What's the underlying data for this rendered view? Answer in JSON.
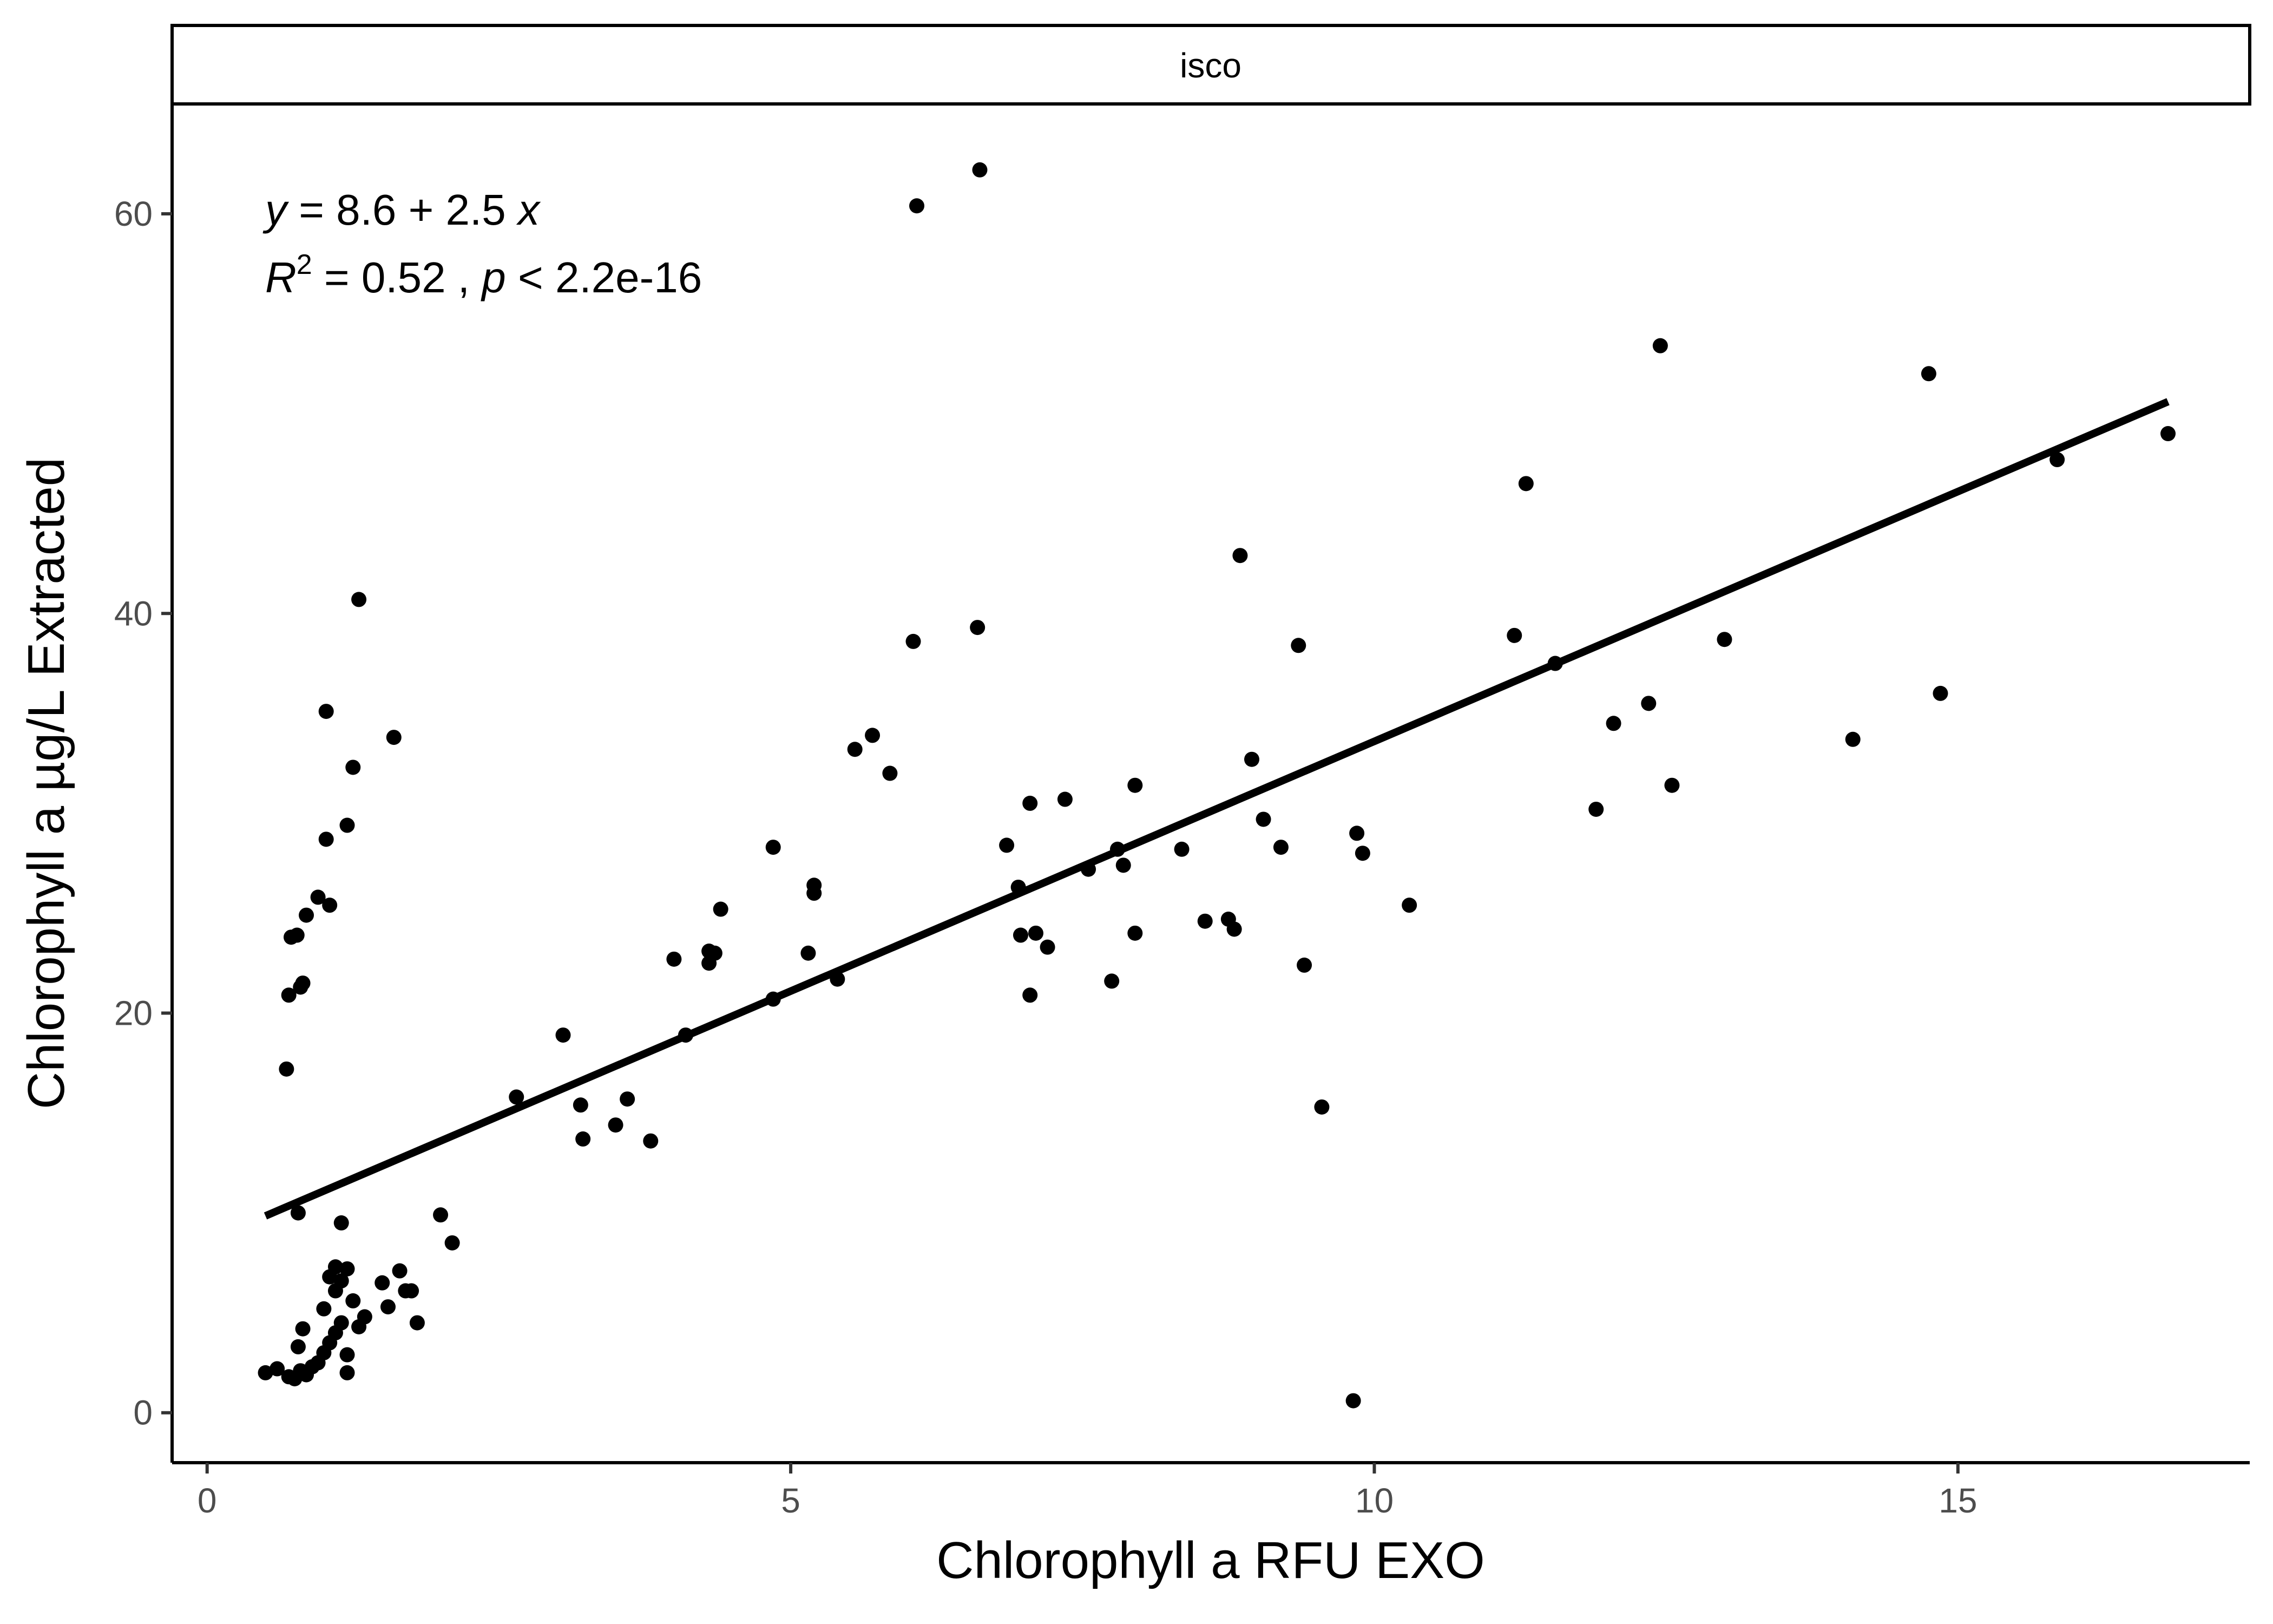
{
  "chart_data": {
    "type": "scatter",
    "facet": "isco",
    "xlabel": "Chlorophyll a RFU EXO",
    "ylabel": "Chlorophyll a µg/L Extracted",
    "xlim": [
      -0.3,
      17.5
    ],
    "ylim": [
      -2.5,
      65.5
    ],
    "x_ticks": [
      0,
      5,
      10,
      15
    ],
    "y_ticks": [
      0,
      20,
      40,
      60
    ],
    "grid": false,
    "annotation": {
      "eq_y": "y",
      "eq_rest": " = 8.6 + 2.5 ",
      "eq_x": "x",
      "r2_R": "R",
      "r2_sup": "2",
      "r2_rest": " = 0.52 ,  ",
      "p_p": "p",
      "p_rest": " < 2.2e-16"
    },
    "fit": {
      "intercept": 8.6,
      "slope": 2.5,
      "x_range": [
        0.5,
        16.8
      ]
    },
    "points": [
      [
        0.5,
        2.0
      ],
      [
        0.6,
        2.2
      ],
      [
        0.7,
        1.8
      ],
      [
        0.75,
        1.7
      ],
      [
        0.8,
        2.1
      ],
      [
        0.85,
        1.9
      ],
      [
        0.9,
        2.3
      ],
      [
        0.78,
        3.3
      ],
      [
        0.82,
        4.2
      ],
      [
        0.95,
        2.5
      ],
      [
        1.0,
        3.0
      ],
      [
        1.05,
        3.5
      ],
      [
        1.1,
        4.0
      ],
      [
        1.15,
        4.5
      ],
      [
        1.0,
        5.2
      ],
      [
        1.05,
        6.8
      ],
      [
        1.1,
        7.3
      ],
      [
        1.1,
        6.1
      ],
      [
        1.15,
        6.6
      ],
      [
        1.2,
        7.2
      ],
      [
        1.25,
        5.6
      ],
      [
        1.3,
        4.3
      ],
      [
        1.35,
        4.8
      ],
      [
        1.5,
        6.5
      ],
      [
        1.55,
        5.3
      ],
      [
        1.65,
        7.1
      ],
      [
        1.7,
        6.1
      ],
      [
        1.75,
        6.1
      ],
      [
        1.8,
        4.5
      ],
      [
        1.2,
        2.9
      ],
      [
        1.2,
        2.0
      ],
      [
        1.15,
        9.5
      ],
      [
        0.78,
        10.0
      ],
      [
        2.0,
        9.9
      ],
      [
        2.1,
        8.5
      ],
      [
        0.68,
        17.2
      ],
      [
        0.7,
        20.9
      ],
      [
        0.8,
        21.3
      ],
      [
        0.82,
        21.5
      ],
      [
        0.72,
        23.8
      ],
      [
        0.77,
        23.9
      ],
      [
        0.85,
        24.9
      ],
      [
        0.95,
        25.8
      ],
      [
        1.05,
        25.4
      ],
      [
        1.02,
        28.7
      ],
      [
        1.2,
        29.4
      ],
      [
        1.25,
        32.3
      ],
      [
        1.02,
        35.1
      ],
      [
        1.6,
        33.8
      ],
      [
        1.3,
        40.7
      ],
      [
        2.65,
        15.8
      ],
      [
        3.05,
        18.9
      ],
      [
        3.2,
        15.4
      ],
      [
        3.22,
        13.7
      ],
      [
        3.5,
        14.4
      ],
      [
        3.6,
        15.7
      ],
      [
        3.8,
        13.6
      ],
      [
        4.0,
        22.7
      ],
      [
        4.1,
        18.9
      ],
      [
        4.3,
        22.5
      ],
      [
        4.3,
        23.1
      ],
      [
        4.35,
        23.0
      ],
      [
        4.4,
        25.2
      ],
      [
        4.85,
        20.7
      ],
      [
        4.85,
        28.3
      ],
      [
        5.15,
        23.0
      ],
      [
        5.2,
        26.4
      ],
      [
        5.2,
        26.0
      ],
      [
        5.4,
        21.7
      ],
      [
        5.55,
        33.2
      ],
      [
        5.7,
        33.9
      ],
      [
        5.85,
        32.0
      ],
      [
        6.05,
        38.6
      ],
      [
        6.08,
        60.4
      ],
      [
        6.6,
        39.3
      ],
      [
        6.62,
        62.2
      ],
      [
        6.85,
        28.4
      ],
      [
        6.95,
        26.3
      ],
      [
        6.97,
        23.9
      ],
      [
        7.05,
        30.5
      ],
      [
        7.05,
        20.9
      ],
      [
        7.1,
        24.0
      ],
      [
        7.2,
        23.3
      ],
      [
        7.35,
        30.7
      ],
      [
        7.55,
        27.2
      ],
      [
        7.75,
        21.6
      ],
      [
        7.8,
        28.2
      ],
      [
        7.85,
        27.4
      ],
      [
        7.95,
        31.4
      ],
      [
        7.95,
        24.0
      ],
      [
        8.35,
        28.2
      ],
      [
        8.55,
        24.6
      ],
      [
        8.75,
        24.7
      ],
      [
        8.8,
        24.2
      ],
      [
        8.85,
        42.9
      ],
      [
        8.95,
        32.7
      ],
      [
        9.05,
        29.7
      ],
      [
        9.2,
        28.3
      ],
      [
        9.35,
        38.4
      ],
      [
        9.4,
        22.4
      ],
      [
        9.55,
        15.3
      ],
      [
        9.82,
        0.6
      ],
      [
        9.85,
        29.0
      ],
      [
        9.9,
        28.0
      ],
      [
        10.3,
        25.4
      ],
      [
        11.2,
        38.9
      ],
      [
        11.3,
        46.5
      ],
      [
        11.55,
        37.5
      ],
      [
        11.9,
        30.2
      ],
      [
        12.05,
        34.5
      ],
      [
        12.35,
        35.5
      ],
      [
        12.45,
        53.4
      ],
      [
        12.55,
        31.4
      ],
      [
        13.0,
        38.7
      ],
      [
        14.1,
        33.7
      ],
      [
        14.75,
        52.0
      ],
      [
        14.85,
        36.0
      ],
      [
        15.85,
        47.7
      ],
      [
        16.8,
        49.0
      ]
    ]
  }
}
